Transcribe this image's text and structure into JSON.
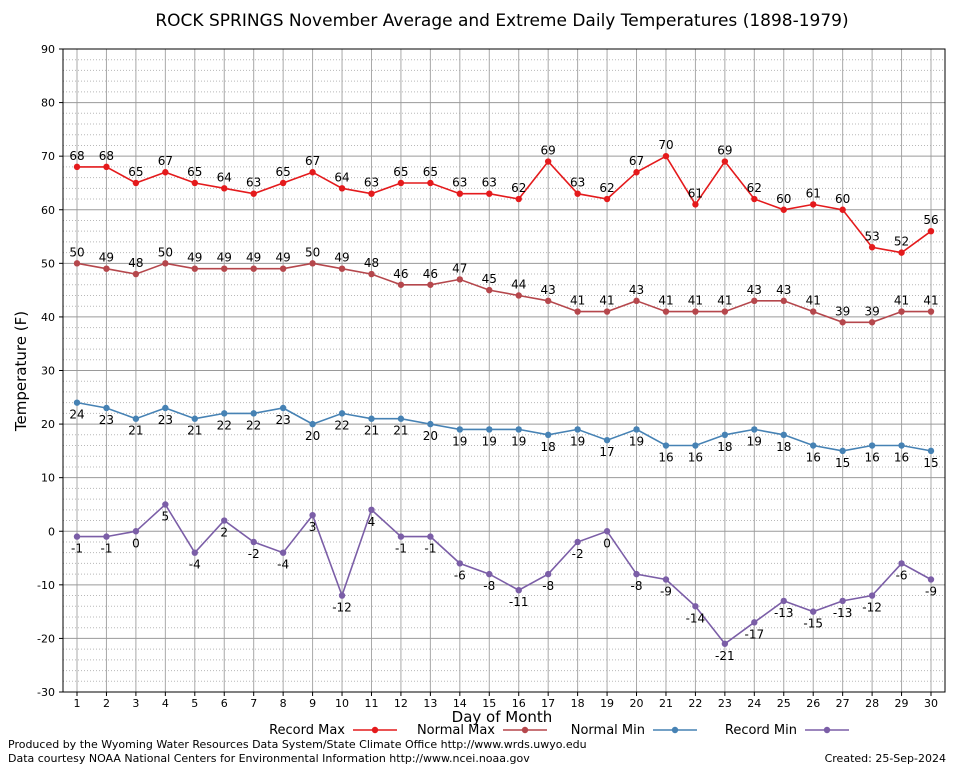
{
  "chart_data": {
    "type": "line",
    "title": "ROCK SPRINGS November Average and Extreme Daily Temperatures (1898-1979)",
    "xlabel": "Day of Month",
    "ylabel": "Temperature (F)",
    "ylim": [
      -30,
      90
    ],
    "yticks": [
      -30,
      -20,
      -10,
      0,
      10,
      20,
      30,
      40,
      50,
      60,
      70,
      80,
      90
    ],
    "grid": true,
    "legend_position": "bottom",
    "x": [
      1,
      2,
      3,
      4,
      5,
      6,
      7,
      8,
      9,
      10,
      11,
      12,
      13,
      14,
      15,
      16,
      17,
      18,
      19,
      20,
      21,
      22,
      23,
      24,
      25,
      26,
      27,
      28,
      29,
      30
    ],
    "series": [
      {
        "name": "Record Max",
        "color": "#e41a1c",
        "label_position": "above",
        "values": [
          68,
          68,
          65,
          67,
          65,
          64,
          63,
          65,
          67,
          64,
          63,
          65,
          65,
          63,
          63,
          62,
          69,
          63,
          62,
          67,
          70,
          61,
          69,
          62,
          60,
          61,
          60,
          53,
          52,
          56
        ]
      },
      {
        "name": "Normal Max",
        "color": "#b5474c",
        "label_position": "above",
        "values": [
          50,
          49,
          48,
          50,
          49,
          49,
          49,
          49,
          50,
          49,
          48,
          46,
          46,
          47,
          45,
          44,
          43,
          41,
          41,
          43,
          41,
          41,
          41,
          43,
          43,
          41,
          39,
          39,
          41,
          41
        ]
      },
      {
        "name": "Normal Min",
        "color": "#4682b4",
        "label_position": "below",
        "values": [
          24,
          23,
          21,
          23,
          21,
          22,
          22,
          23,
          20,
          22,
          21,
          21,
          20,
          19,
          19,
          19,
          18,
          19,
          17,
          19,
          16,
          16,
          18,
          19,
          18,
          16,
          15,
          16,
          16,
          15
        ]
      },
      {
        "name": "Record Min",
        "color": "#7b5ea7",
        "label_position": "below",
        "values": [
          -1,
          -1,
          0,
          5,
          -4,
          2,
          -2,
          -4,
          3,
          -12,
          4,
          -1,
          -1,
          -6,
          -8,
          -11,
          -8,
          -2,
          0,
          -8,
          -9,
          -14,
          -21,
          -17,
          -13,
          -15,
          -13,
          -12,
          -6,
          -9
        ]
      }
    ]
  },
  "footer": {
    "line1": "Produced by the Wyoming Water Resources Data System/State Climate Office http://www.wrds.uwyo.edu",
    "line2": "Data courtesy NOAA National Centers for Environmental Information http://www.ncei.noaa.gov",
    "created": "Created:  25-Sep-2024"
  }
}
